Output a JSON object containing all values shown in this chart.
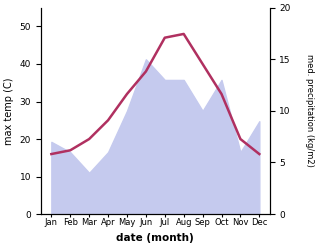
{
  "months": [
    "Jan",
    "Feb",
    "Mar",
    "Apr",
    "May",
    "Jun",
    "Jul",
    "Aug",
    "Sep",
    "Oct",
    "Nov",
    "Dec"
  ],
  "temp_max": [
    16,
    17,
    20,
    25,
    32,
    38,
    47,
    48,
    40,
    32,
    20,
    16
  ],
  "precipitation": [
    7,
    6,
    4,
    6,
    10,
    15,
    13,
    13,
    10,
    13,
    6,
    9
  ],
  "temp_color": "#b03060",
  "precip_fill_color": "#c5caee",
  "temp_ylim": [
    0,
    55
  ],
  "precip_ylim": [
    0,
    20
  ],
  "xlabel": "date (month)",
  "ylabel_left": "max temp (C)",
  "ylabel_right": "med. precipitation (kg/m2)",
  "yticks_left": [
    0,
    10,
    20,
    30,
    40,
    50
  ],
  "yticks_right": [
    0,
    5,
    10,
    15,
    20
  ],
  "background_color": "#ffffff"
}
